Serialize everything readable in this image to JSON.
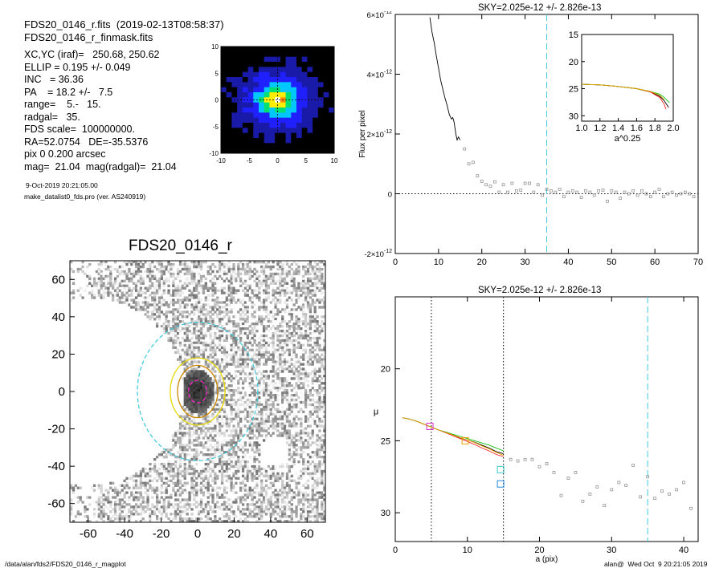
{
  "header": {
    "fits_line": "FDS20_0146_r.fits  (2019-02-13T08:58:37)",
    "mask_line": "FDS20_0146_r_finmask.fits"
  },
  "info_lines": [
    "XC,YC (iraf)=   250.68, 250.62",
    "ELLIP = 0.195 +/- 0.049",
    "INC   = 36.36",
    "PA    = 18.2 +/-   7.5",
    "range=    5.-   15.",
    "radgal=   35.",
    "FDS scale=  100000000.",
    "RA=52.0754   DE=-35.5376",
    "pix 0 0.200 arcsec",
    "mag=  21.04  mag(radgal)=  21.04"
  ],
  "small_lines": [
    "9-Oct-2019 20:21:05.00",
    "make_datalist0_fds.pro (ver. AS240919)"
  ],
  "footer": {
    "path": "/data/alan/fds2/FDS20_0146_r_magplot",
    "user": "alan@  Wed Oct  9 20:21:05 2019"
  },
  "chart_data": [
    {
      "type": "heatmap",
      "title": "",
      "xlim": [
        -10,
        10
      ],
      "ylim": [
        -10,
        10
      ],
      "x_ticks": [
        "-10",
        "-5",
        "0",
        "5",
        "10"
      ],
      "y_ticks": [
        "10",
        "5",
        "0",
        "-5",
        "-10"
      ],
      "colormap": [
        "#000000",
        "#1a1aa8",
        "#2020ff",
        "#00c8ff",
        "#00e070",
        "#ffee00",
        "#ff8a00",
        "#ff2000",
        "#ffffff"
      ]
    },
    {
      "type": "heatmap",
      "title": "FDS20_0146_r",
      "xlim": [
        -70,
        70
      ],
      "ylim": [
        -70,
        70
      ],
      "x_ticks": [
        "-60",
        "-40",
        "-20",
        "0",
        "20",
        "40",
        "60"
      ],
      "y_ticks": [
        "60",
        "40",
        "20",
        "0",
        "-20",
        "-40",
        "-60"
      ],
      "ellipses": [
        {
          "a": 33,
          "b": 37,
          "color": "#44ccdd",
          "style": "dashed"
        },
        {
          "a": 15,
          "b": 18,
          "color": "#e8d800",
          "style": "solid"
        },
        {
          "a": 11,
          "b": 14,
          "color": "#cc8800",
          "style": "solid"
        },
        {
          "a": 5,
          "b": 6,
          "color": "#ff22cc",
          "style": "dashed"
        }
      ]
    },
    {
      "type": "line",
      "title": "SKY=2.025e-12 +/- 2.826e-13",
      "ylabel": "Flux per pixel",
      "xlabel": "",
      "xlim": [
        0,
        70
      ],
      "ylim": [
        -2e-12,
        6e-12
      ],
      "x_ticks": [
        "0",
        "10",
        "20",
        "30",
        "40",
        "50",
        "60",
        "70"
      ],
      "y_tick_labels": [
        {
          "mant": "6×10",
          "exp": "-12",
          "v": 6e-12
        },
        {
          "mant": "4×10",
          "exp": "-12",
          "v": 4e-12
        },
        {
          "mant": "2×10",
          "exp": "-12",
          "v": 2e-12
        },
        {
          "mant": "0",
          "exp": "",
          "v": 0
        },
        {
          "mant": "-2×10",
          "exp": "-12",
          "v": -2e-12
        }
      ],
      "sky_line_x": 35,
      "profile_curve": {
        "x": [
          8.0,
          8.5,
          9.0,
          9.5,
          10.0,
          10.5,
          11.0,
          11.5,
          12.0,
          12.5,
          13.0,
          13.3,
          13.6,
          14.0,
          14.3,
          14.6,
          15.0
        ],
        "y": [
          5.9e-12,
          5.4e-12,
          5.05e-12,
          4.6e-12,
          4.2e-12,
          3.8e-12,
          3.5e-12,
          3.2e-12,
          2.95e-12,
          2.65e-12,
          2.5e-12,
          2.55e-12,
          2.4e-12,
          2e-12,
          1.8e-12,
          1.9e-12,
          1.8e-12
        ]
      },
      "outer_points": {
        "x": [
          16,
          17,
          18,
          19,
          20,
          21,
          22,
          23,
          24,
          25,
          26,
          27,
          28,
          29,
          30,
          31,
          32,
          33,
          34,
          35,
          36,
          37,
          38,
          39,
          40,
          41,
          42,
          43,
          44,
          45,
          46,
          47,
          48,
          49,
          50,
          51,
          52,
          53,
          54,
          55,
          56,
          57,
          58,
          59,
          60,
          61,
          62,
          63,
          64,
          65,
          66,
          67,
          68,
          69
        ],
        "y": [
          1.5e-12,
          1e-12,
          1.05e-12,
          6e-13,
          4.2e-13,
          3e-13,
          2.5e-13,
          4e-13,
          5e-14,
          3e-13,
          5e-14,
          3.5e-13,
          1e-13,
          1.2e-13,
          3.5e-13,
          3.5e-13,
          5e-14,
          3e-13,
          -5e-14,
          1.5e-13,
          1e-13,
          5e-14,
          1.5e-13,
          -1e-13,
          5e-14,
          1e-13,
          5e-14,
          -1.2e-13,
          1e-13,
          5e-14,
          -5e-14,
          1e-13,
          1.2e-13,
          -2.5e-13,
          1e-13,
          5e-14,
          -1.5e-13,
          5e-14,
          0.0,
          1e-13,
          -5e-14,
          1e-13,
          0.0,
          -1e-13,
          5e-14,
          1.5e-13,
          -1e-13,
          0.0,
          5e-14,
          -5e-14,
          0.0,
          5e-14,
          0.0,
          -1e-13
        ]
      }
    },
    {
      "type": "line",
      "title": "",
      "xlabel": "a^0.25",
      "xlim": [
        1.0,
        2.0
      ],
      "ylim": [
        15,
        31
      ],
      "x_ticks": [
        "1.0",
        "1.2",
        "1.4",
        "1.6",
        "1.8",
        "2.0"
      ],
      "y_ticks": [
        "15",
        "20",
        "25",
        "30"
      ],
      "series": [
        {
          "color": "#000000",
          "x": [
            1.0,
            1.2,
            1.4,
            1.6,
            1.75,
            1.85,
            1.9,
            1.95
          ],
          "y": [
            24.2,
            24.3,
            24.6,
            25.0,
            25.6,
            26.4,
            27.2,
            28.5
          ]
        },
        {
          "color": "#ff2020",
          "x": [
            1.0,
            1.2,
            1.4,
            1.6,
            1.75,
            1.85,
            1.9,
            1.92
          ],
          "y": [
            24.2,
            24.3,
            24.6,
            25.0,
            25.6,
            26.6,
            27.8,
            28.8
          ]
        },
        {
          "color": "#10c010",
          "x": [
            1.0,
            1.2,
            1.4,
            1.6,
            1.75,
            1.85,
            1.9,
            1.96
          ],
          "y": [
            24.2,
            24.3,
            24.6,
            25.0,
            25.5,
            26.0,
            26.6,
            27.6
          ]
        },
        {
          "color": "#e8a000",
          "x": [
            1.0,
            1.2,
            1.4,
            1.6,
            1.75,
            1.85,
            1.9
          ],
          "y": [
            24.2,
            24.3,
            24.6,
            25.0,
            25.5,
            26.2,
            27.0
          ]
        }
      ]
    },
    {
      "type": "line",
      "title": "SKY=2.025e-12 +/- 2.826e-13",
      "xlabel": "a (pix)",
      "ylabel": "μ",
      "xlim": [
        0,
        42
      ],
      "ylim": [
        32,
        15
      ],
      "x_ticks": [
        "0",
        "10",
        "20",
        "30",
        "40"
      ],
      "y_ticks": [
        "20",
        "25",
        "30"
      ],
      "vlines_dotted": [
        5,
        15
      ],
      "sky_line_x": 35,
      "series": [
        {
          "color": "#000000",
          "x": [
            1,
            2,
            3,
            4,
            5,
            6,
            7,
            8,
            9,
            10,
            11,
            12,
            13,
            14,
            15
          ],
          "y": [
            23.4,
            23.5,
            23.65,
            23.85,
            24.05,
            24.25,
            24.4,
            24.6,
            24.8,
            24.95,
            25.1,
            25.3,
            25.5,
            25.75,
            25.9
          ]
        },
        {
          "color": "#ff2020",
          "x": [
            1,
            2,
            3,
            4,
            5,
            6,
            7,
            8,
            9,
            10,
            11,
            12,
            13,
            14,
            15
          ],
          "y": [
            23.4,
            23.5,
            23.65,
            23.85,
            24.05,
            24.25,
            24.45,
            24.65,
            24.85,
            25.05,
            25.25,
            25.5,
            25.7,
            25.95,
            26.1
          ]
        },
        {
          "color": "#10c010",
          "x": [
            1,
            2,
            3,
            4,
            5,
            6,
            7,
            8,
            9,
            10,
            11,
            12,
            13,
            14,
            15
          ],
          "y": [
            23.4,
            23.5,
            23.65,
            23.85,
            24.05,
            24.25,
            24.4,
            24.55,
            24.7,
            24.85,
            25.0,
            25.15,
            25.3,
            25.5,
            25.7
          ]
        },
        {
          "color": "#e8a000",
          "x": [
            1,
            2,
            3,
            4,
            5,
            6,
            7,
            8,
            9,
            10,
            11,
            12,
            13,
            14,
            15
          ],
          "y": [
            23.4,
            23.5,
            23.65,
            23.85,
            24.05,
            24.25,
            24.42,
            24.6,
            24.78,
            24.95,
            25.12,
            25.35,
            25.55,
            25.8,
            26.0
          ]
        }
      ],
      "markers": [
        {
          "x": 4.8,
          "y": 24.0,
          "color": "#dd33cc"
        },
        {
          "x": 9.7,
          "y": 25.0,
          "color": "#e8a000"
        },
        {
          "x": 14.6,
          "y": 27.0,
          "color": "#33cccc"
        },
        {
          "x": 14.6,
          "y": 28.0,
          "color": "#2288dd"
        }
      ],
      "outer_points": {
        "x": [
          16,
          17,
          18,
          19,
          20,
          21,
          22,
          23,
          24,
          25,
          26,
          27,
          28,
          29,
          30,
          31,
          32,
          33,
          34,
          35,
          36,
          37,
          38,
          39,
          40,
          41
        ],
        "y": [
          26.3,
          26.4,
          26.3,
          26.3,
          26.8,
          26.6,
          27.2,
          28.8,
          27.6,
          27.2,
          29.2,
          28.7,
          28.2,
          29.5,
          28.4,
          27.9,
          28.1,
          26.7,
          28.9,
          27.5,
          29.0,
          28.5,
          28.7,
          28.4,
          27.9,
          29.7
        ]
      }
    }
  ]
}
